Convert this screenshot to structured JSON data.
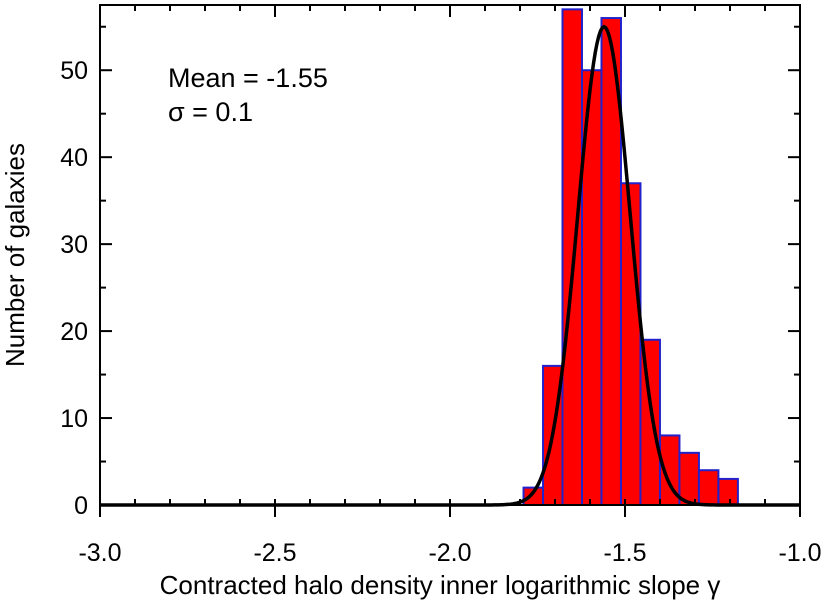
{
  "chart_data": {
    "type": "bar",
    "subtype": "histogram-with-gaussian-fit",
    "xlabel": "Contracted halo density inner logarithmic slope γ",
    "ylabel": "Number of galaxies",
    "xlim": [
      -3.0,
      -1.0
    ],
    "ylim": [
      0,
      57.5
    ],
    "xticks": [
      -3.0,
      -2.5,
      -2.0,
      -1.5,
      -1.0
    ],
    "xtick_labels": [
      "-3.0",
      "-2.5",
      "-2.0",
      "-1.5",
      "-1.0"
    ],
    "yticks": [
      0,
      10,
      20,
      30,
      40,
      50
    ],
    "ytick_labels": [
      "0",
      "10",
      "20",
      "30",
      "40",
      "50"
    ],
    "grid": false,
    "bin_width": 0.0557,
    "bins": [
      {
        "x0": -1.7899,
        "count": 2
      },
      {
        "x0": -1.7342,
        "count": 16
      },
      {
        "x0": -1.6786,
        "count": 57
      },
      {
        "x0": -1.6229,
        "count": 50
      },
      {
        "x0": -1.5672,
        "count": 56
      },
      {
        "x0": -1.5115,
        "count": 37
      },
      {
        "x0": -1.4558,
        "count": 19
      },
      {
        "x0": -1.4001,
        "count": 8
      },
      {
        "x0": -1.3445,
        "count": 6
      },
      {
        "x0": -1.2888,
        "count": 4
      },
      {
        "x0": -1.2331,
        "count": 3
      }
    ],
    "fit": {
      "mean": -1.56,
      "sigma": 0.075,
      "amplitude": 55
    },
    "colors": {
      "bar_fill": "#ff0000",
      "bar_edge": "#2222cc",
      "fit_line": "#000000"
    },
    "annotations": {
      "mean_text": "Mean = -1.55",
      "sigma_text": "σ = 0.1"
    }
  }
}
